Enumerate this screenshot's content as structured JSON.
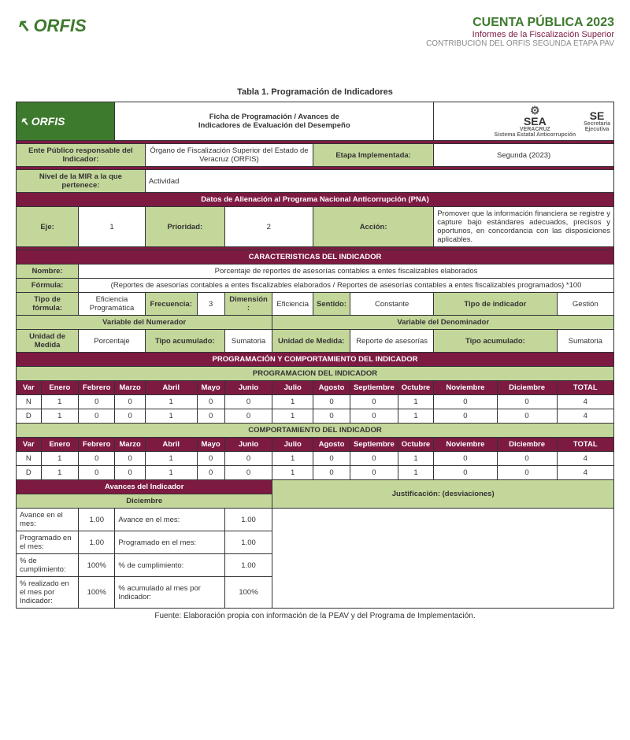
{
  "header": {
    "logo_left": "ORFIS",
    "title": "CUENTA PÚBLICA 2023",
    "sub": "Informes de la Fiscalización Superior",
    "sub2": "CONTRIBUCIÓN DEL ORFIS SEGUNDA ETAPA PAV"
  },
  "table_caption": "Tabla 1. Programación de Indicadores",
  "ficha": {
    "title_line1": "Ficha de Programación / Avances de",
    "title_line2": "Indicadores de Evaluación del Desempeño",
    "logo_box": "ORFIS",
    "sea": {
      "big": "SEA",
      "small1": "VERACRUZ",
      "small2": "Sistema Estatal Anticorrupción"
    },
    "se": {
      "big": "SE",
      "small1": "Secretaría",
      "small2": "Ejecutiva"
    }
  },
  "labels": {
    "ente": "Ente Público responsable del Indicador:",
    "ente_val": "Órgano de Fiscalización Superior del Estado de Veracruz (ORFIS)",
    "etapa": "Etapa Implementada:",
    "etapa_val": "Segunda (2023)",
    "nivel": "Nivel de la MIR a la que pertenece:",
    "nivel_val": "Actividad",
    "datos_pna": "Datos de Alienación al Programa Nacional Anticorrupción (PNA)",
    "eje": "Eje:",
    "eje_val": "1",
    "prioridad": "Prioridad:",
    "prioridad_val": "2",
    "accion": "Acción:",
    "accion_val": "Promover que la información financiera se registre y capture bajo estándares adecuados, precisos y oportunos, en concordancia con las disposiciones aplicables.",
    "caract": "CARACTERISTICAS DEL INDICADOR",
    "nombre": "Nombre:",
    "nombre_val": "Porcentaje de reportes de asesorías contables a entes fiscalizables elaborados",
    "formula": "Fórmula:",
    "formula_val": "(Reportes de asesorías contables a entes fiscalizables elaborados / Reportes de asesorías contables a entes fiscalizables programados) *100",
    "tipo_formula": "Tipo de fórmula:",
    "tipo_formula_val": "Eficiencia Programática",
    "frecuencia": "Frecuencia:",
    "frecuencia_val": "3",
    "dimension": "Dimensión :",
    "dimension_val": "Eficiencia",
    "sentido": "Sentido:",
    "sentido_val": "Constante",
    "tipo_ind": "Tipo de indicador",
    "tipo_ind_val": "Gestión",
    "var_num": "Variable del Numerador",
    "var_den": "Variable del Denominador",
    "unidad": "Unidad de Medida",
    "unidad_num_val": "Porcentaje",
    "tipo_acum": "Tipo acumulado:",
    "tipo_acum_num_val": "Sumatoria",
    "unidad_den": "Unidad de Medida:",
    "unidad_den_val": "Reporte de asesorías",
    "tipo_acum_den_val": "Sumatoria",
    "prog_comp": "PROGRAMACIÓN Y COMPORTAMIENTO DEL INDICADOR",
    "prog": "PROGRAMACION DEL INDICADOR",
    "comp": "COMPORTAMIENTO DEL INDICADOR",
    "avances": "Avances del Indicador",
    "diciembre": "Diciembre",
    "justif": "Justificación:  (desviaciones)",
    "av_mes": "Avance en el mes:",
    "prog_mes": "Programado en el mes:",
    "pct_cump": "% de cumplimiento:",
    "pct_real": "% realizado en el mes por Indicador:",
    "pct_acum": "% acumulado al mes por Indicador:"
  },
  "months": [
    "Var",
    "Enero",
    "Febrero",
    "Marzo",
    "Abril",
    "Mayo",
    "Junio",
    "Julio",
    "Agosto",
    "Septiembre",
    "Octubre",
    "Noviembre",
    "Diciembre",
    "TOTAL"
  ],
  "prog_data": {
    "N": [
      "N",
      "1",
      "0",
      "0",
      "1",
      "0",
      "0",
      "1",
      "0",
      "0",
      "1",
      "0",
      "0",
      "4"
    ],
    "D": [
      "D",
      "1",
      "0",
      "0",
      "1",
      "0",
      "0",
      "1",
      "0",
      "0",
      "1",
      "0",
      "0",
      "4"
    ]
  },
  "comp_data": {
    "N": [
      "N",
      "1",
      "0",
      "0",
      "1",
      "0",
      "0",
      "1",
      "0",
      "0",
      "1",
      "0",
      "0",
      "4"
    ],
    "D": [
      "D",
      "1",
      "0",
      "0",
      "1",
      "0",
      "0",
      "1",
      "0",
      "0",
      "1",
      "0",
      "0",
      "4"
    ]
  },
  "avances_vals": {
    "col1": {
      "av": "1.00",
      "prog": "1.00",
      "cump": "100%",
      "real": "100%"
    },
    "col2": {
      "av": "1.00",
      "prog": "1.00",
      "cump": "1.00",
      "acum": "100%"
    }
  },
  "footer": "Fuente: Elaboración propia con información de la PEAV y del Programa de Implementación."
}
